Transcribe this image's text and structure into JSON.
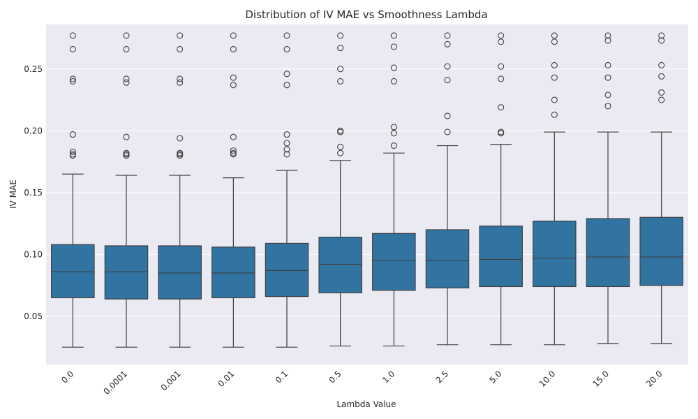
{
  "chart_data": {
    "type": "boxplot",
    "title": "Distribution of IV MAE vs Smoothness Lambda",
    "xlabel": "Lambda Value",
    "ylabel": "IV MAE",
    "ylim": [
      0.011,
      0.286
    ],
    "yticks": [
      "0.05",
      "0.10",
      "0.15",
      "0.20",
      "0.25"
    ],
    "ytick_values": [
      0.05,
      0.1,
      0.15,
      0.2,
      0.25
    ],
    "grid": true,
    "colors": {
      "box": "#3274a1",
      "edge": "#3f3f3f",
      "background": "#eaeaf2",
      "grid": "#ffffff"
    },
    "categories": [
      "0.0",
      "0.0001",
      "0.001",
      "0.01",
      "0.1",
      "0.5",
      "1.0",
      "2.5",
      "5.0",
      "10.0",
      "15.0",
      "20.0"
    ],
    "boxes": [
      {
        "label": "0.0",
        "whislo": 0.025,
        "q1": 0.065,
        "med": 0.086,
        "q3": 0.108,
        "whishi": 0.165,
        "fliers": [
          0.277,
          0.266,
          0.242,
          0.24,
          0.197,
          0.183,
          0.181,
          0.18
        ]
      },
      {
        "label": "0.0001",
        "whislo": 0.025,
        "q1": 0.064,
        "med": 0.086,
        "q3": 0.107,
        "whishi": 0.164,
        "fliers": [
          0.277,
          0.266,
          0.242,
          0.239,
          0.195,
          0.182,
          0.181,
          0.18
        ]
      },
      {
        "label": "0.001",
        "whislo": 0.025,
        "q1": 0.064,
        "med": 0.085,
        "q3": 0.107,
        "whishi": 0.164,
        "fliers": [
          0.277,
          0.266,
          0.242,
          0.239,
          0.194,
          0.182,
          0.181,
          0.18
        ]
      },
      {
        "label": "0.01",
        "whislo": 0.025,
        "q1": 0.065,
        "med": 0.085,
        "q3": 0.106,
        "whishi": 0.162,
        "fliers": [
          0.277,
          0.266,
          0.243,
          0.237,
          0.195,
          0.184,
          0.182,
          0.181
        ]
      },
      {
        "label": "0.1",
        "whislo": 0.025,
        "q1": 0.066,
        "med": 0.087,
        "q3": 0.109,
        "whishi": 0.168,
        "fliers": [
          0.277,
          0.266,
          0.246,
          0.237,
          0.197,
          0.19,
          0.185,
          0.181
        ]
      },
      {
        "label": "0.5",
        "whislo": 0.026,
        "q1": 0.069,
        "med": 0.092,
        "q3": 0.114,
        "whishi": 0.176,
        "fliers": [
          0.277,
          0.267,
          0.25,
          0.24,
          0.2,
          0.199,
          0.187,
          0.182
        ]
      },
      {
        "label": "1.0",
        "whislo": 0.026,
        "q1": 0.071,
        "med": 0.095,
        "q3": 0.117,
        "whishi": 0.182,
        "fliers": [
          0.277,
          0.268,
          0.251,
          0.24,
          0.203,
          0.198,
          0.188
        ]
      },
      {
        "label": "2.5",
        "whislo": 0.027,
        "q1": 0.073,
        "med": 0.095,
        "q3": 0.12,
        "whishi": 0.188,
        "fliers": [
          0.277,
          0.27,
          0.252,
          0.241,
          0.212,
          0.199
        ]
      },
      {
        "label": "5.0",
        "whislo": 0.027,
        "q1": 0.074,
        "med": 0.096,
        "q3": 0.123,
        "whishi": 0.189,
        "fliers": [
          0.277,
          0.272,
          0.252,
          0.242,
          0.219,
          0.199,
          0.198
        ]
      },
      {
        "label": "10.0",
        "whislo": 0.027,
        "q1": 0.074,
        "med": 0.097,
        "q3": 0.127,
        "whishi": 0.199,
        "fliers": [
          0.277,
          0.272,
          0.253,
          0.243,
          0.225,
          0.213
        ]
      },
      {
        "label": "15.0",
        "whislo": 0.028,
        "q1": 0.074,
        "med": 0.098,
        "q3": 0.129,
        "whishi": 0.199,
        "fliers": [
          0.277,
          0.273,
          0.253,
          0.243,
          0.229,
          0.22
        ]
      },
      {
        "label": "20.0",
        "whislo": 0.028,
        "q1": 0.075,
        "med": 0.098,
        "q3": 0.13,
        "whishi": 0.199,
        "fliers": [
          0.277,
          0.273,
          0.253,
          0.244,
          0.231,
          0.225
        ]
      }
    ]
  }
}
